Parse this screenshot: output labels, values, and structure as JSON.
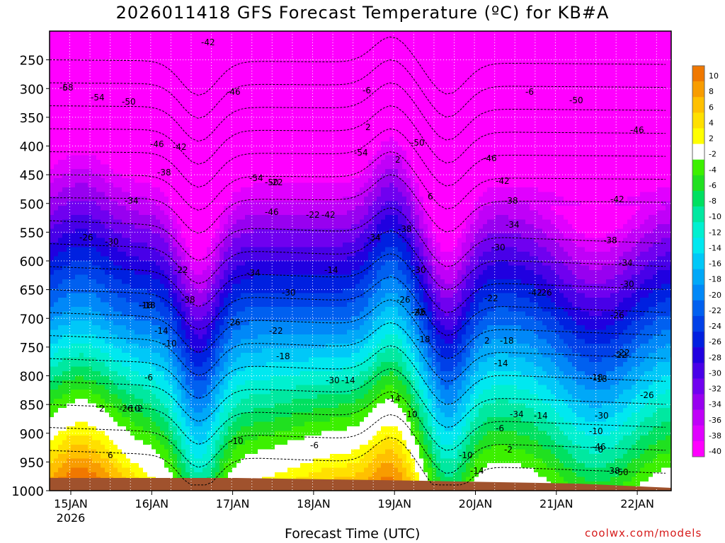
{
  "title": "2026011418 GFS Forecast Temperature (ºC) for KB#A",
  "xlabel": "Forecast Time (UTC)",
  "credit": "coolwx.com/models",
  "chart_data": {
    "type": "heatmap",
    "title": "2026011418 GFS Forecast Temperature (ºC) for KB#A",
    "xlabel": "Forecast Time (UTC)",
    "ylabel": "",
    "x_ticks": [
      "15JAN\n2026",
      "16JAN",
      "17JAN",
      "18JAN",
      "19JAN",
      "20JAN",
      "21JAN",
      "22JAN"
    ],
    "x_range_days": [
      "15JAN 00Z",
      "22JAN 06Z"
    ],
    "y_ticks": [
      250,
      300,
      350,
      400,
      450,
      500,
      550,
      600,
      650,
      700,
      750,
      800,
      850,
      900,
      950,
      1000
    ],
    "y_range": [
      1000,
      200
    ],
    "grid": true,
    "colorbar": {
      "labels": [
        "10",
        "8",
        "6",
        "4",
        "2",
        "-2",
        "-4",
        "-6",
        "-8",
        "-10",
        "-12",
        "-14",
        "-16",
        "-18",
        "-20",
        "-22",
        "-24",
        "-26",
        "-28",
        "-30",
        "-32",
        "-34",
        "-36",
        "-38",
        "-40"
      ],
      "colors": [
        "#f07800",
        "#f89c00",
        "#ffc000",
        "#ffe000",
        "#ffff00",
        "#ffffff",
        "#3cf000",
        "#20e020",
        "#00e060",
        "#00e8a0",
        "#00f0d0",
        "#00e8f0",
        "#00c8f8",
        "#00a8f8",
        "#0088f8",
        "#0060f0",
        "#0040e8",
        "#0020e0",
        "#2000e0",
        "#4800e8",
        "#7000f0",
        "#9800f0",
        "#c000f8",
        "#e000ff",
        "#ff00ff"
      ]
    },
    "contour_labels": [
      "-58",
      "-54",
      "-50",
      "-46",
      "-42",
      "-38",
      "-34",
      "-30",
      "-26",
      "-22",
      "-18",
      "-14",
      "-10",
      "-6",
      "-2",
      "2",
      "6",
      "-42",
      "-46",
      "-54",
      "-50",
      "-46",
      "-42",
      "-38",
      "-34",
      "-30",
      "-26",
      "-22",
      "-18",
      "-14",
      "-10",
      "-6",
      "2",
      "6",
      "-38",
      "-34",
      "-30",
      "-26",
      "-22",
      "-18",
      "-14",
      "-10",
      "-6",
      "2",
      "-54",
      "-50",
      "-46",
      "-42",
      "-38",
      "-34",
      "-30",
      "-26",
      "-22",
      "-18",
      "-14",
      "-10",
      "-6",
      "-50",
      "-46",
      "-42",
      "-38",
      "-34",
      "-30",
      "-26",
      "-22",
      "-18",
      "-14",
      "-10",
      "-6",
      "-50",
      "-46",
      "-38",
      "-34",
      "-30",
      "-26",
      "-22",
      "-18",
      "-14",
      "-10",
      "-6",
      "-2",
      "2",
      "-42",
      "-46",
      "-30",
      "-14",
      "-22",
      "-22",
      "-18",
      "-26",
      "-6"
    ]
  }
}
